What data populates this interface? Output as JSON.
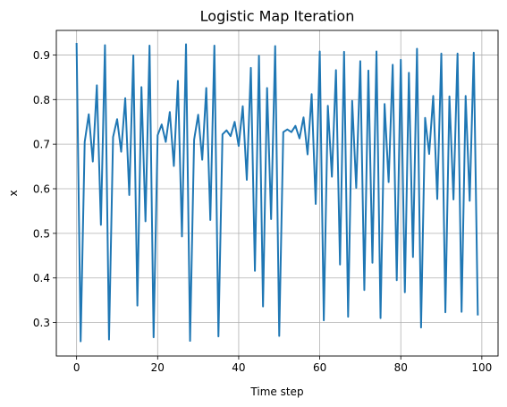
{
  "chart_data": {
    "type": "line",
    "title": "Logistic Map Iteration",
    "xlabel": "Time step",
    "ylabel": "x",
    "xlim": [
      -5,
      104
    ],
    "ylim": [
      0.225,
      0.955
    ],
    "xticks": [
      0,
      20,
      40,
      60,
      80,
      100
    ],
    "yticks": [
      0.3,
      0.4,
      0.5,
      0.6,
      0.7,
      0.8,
      0.9
    ],
    "ytick_labels": [
      "0.3",
      "0.4",
      "0.5",
      "0.6",
      "0.7",
      "0.8",
      "0.9"
    ],
    "grid": true,
    "line_color": "#1f77b4",
    "series": [
      {
        "x": [
          0,
          1,
          2,
          3,
          4,
          5,
          6,
          7,
          8,
          9,
          10,
          11,
          12,
          13,
          14,
          15,
          16,
          17,
          18,
          19,
          20,
          21,
          22,
          23,
          24,
          25,
          26,
          27,
          28,
          29,
          30,
          31,
          32,
          33,
          34,
          35,
          36,
          37,
          38,
          39,
          40,
          41,
          42,
          43,
          44,
          45,
          46,
          47,
          48,
          49,
          50,
          51,
          52,
          53,
          54,
          55,
          56,
          57,
          58,
          59,
          60,
          61,
          62,
          63,
          64,
          65,
          66,
          67,
          68,
          69,
          70,
          71,
          72,
          73,
          74,
          75,
          76,
          77,
          78,
          79,
          80,
          81,
          82,
          83,
          84,
          85,
          86,
          87,
          88,
          89,
          90,
          91,
          92,
          93,
          94,
          95,
          96,
          97,
          98,
          99
        ],
        "y": [
          0.925,
          0.258,
          0.705,
          0.767,
          0.661,
          0.832,
          0.519,
          0.922,
          0.262,
          0.716,
          0.756,
          0.683,
          0.803,
          0.586,
          0.899,
          0.338,
          0.828,
          0.527,
          0.921,
          0.267,
          0.72,
          0.744,
          0.705,
          0.772,
          0.651,
          0.842,
          0.493,
          0.924,
          0.259,
          0.71,
          0.766,
          0.665,
          0.826,
          0.53,
          0.921,
          0.269,
          0.722,
          0.731,
          0.718,
          0.75,
          0.696,
          0.785,
          0.62,
          0.871,
          0.416,
          0.898,
          0.336,
          0.826,
          0.532,
          0.92,
          0.27,
          0.727,
          0.733,
          0.727,
          0.741,
          0.713,
          0.76,
          0.677,
          0.812,
          0.566,
          0.908,
          0.305,
          0.786,
          0.627,
          0.866,
          0.43,
          0.907,
          0.313,
          0.797,
          0.602,
          0.886,
          0.373,
          0.865,
          0.434,
          0.908,
          0.31,
          0.79,
          0.615,
          0.878,
          0.395,
          0.889,
          0.368,
          0.86,
          0.447,
          0.914,
          0.289,
          0.759,
          0.678,
          0.808,
          0.577,
          0.903,
          0.323,
          0.807,
          0.576,
          0.903,
          0.324,
          0.808,
          0.573,
          0.905,
          0.318
        ]
      }
    ]
  }
}
